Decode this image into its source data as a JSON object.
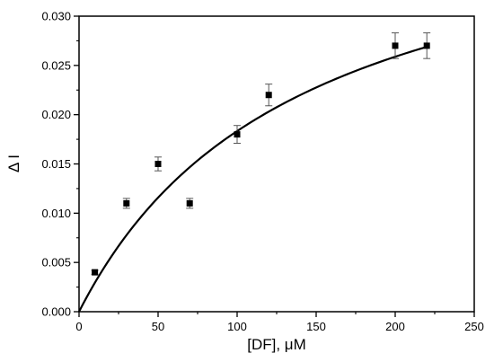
{
  "chart_data": {
    "type": "scatter",
    "xlabel": "[DF], μM",
    "ylabel": "Δ I",
    "xlim": [
      0,
      250
    ],
    "ylim": [
      0,
      0.03
    ],
    "x_ticks": [
      "0",
      "50",
      "100",
      "150",
      "200",
      "250"
    ],
    "y_ticks": [
      "0.000",
      "0.005",
      "0.010",
      "0.015",
      "0.020",
      "0.025",
      "0.030"
    ],
    "grid": false,
    "legend": "none",
    "series": [
      {
        "marker": "square",
        "color": "#000000",
        "points": [
          {
            "x": 10,
            "y": 0.004,
            "err": 0.0002
          },
          {
            "x": 30,
            "y": 0.011,
            "err": 0.0005
          },
          {
            "x": 50,
            "y": 0.015,
            "err": 0.0007
          },
          {
            "x": 70,
            "y": 0.011,
            "err": 0.0005
          },
          {
            "x": 100,
            "y": 0.018,
            "err": 0.0009
          },
          {
            "x": 120,
            "y": 0.022,
            "err": 0.0011
          },
          {
            "x": 200,
            "y": 0.027,
            "err": 0.0013
          },
          {
            "x": 220,
            "y": 0.027,
            "err": 0.0013
          }
        ]
      }
    ],
    "fit": {
      "model": "hyperbolic saturation",
      "vmax": 0.044,
      "k": 140,
      "x_range": [
        0,
        220
      ],
      "color": "#000000"
    }
  }
}
